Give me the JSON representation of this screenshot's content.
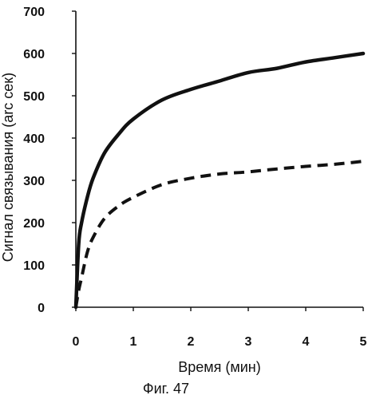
{
  "chart_data": {
    "type": "line",
    "caption": "Фиг. 47",
    "xlabel": "Время (мин)",
    "ylabel": "Сигнал связывания (arc сек)",
    "xlim": [
      0,
      5
    ],
    "ylim": [
      0,
      700
    ],
    "x_ticks": [
      0,
      1,
      2,
      3,
      4,
      5
    ],
    "y_ticks": [
      0,
      100,
      200,
      300,
      400,
      500,
      600,
      700
    ],
    "grid": false,
    "series": [
      {
        "style": "solid",
        "color": "#111111",
        "x": [
          0,
          0.05,
          0.1,
          0.2,
          0.3,
          0.5,
          0.75,
          1,
          1.5,
          2,
          2.5,
          3,
          3.5,
          4,
          4.5,
          5
        ],
        "y": [
          0,
          150,
          200,
          260,
          305,
          365,
          410,
          445,
          490,
          515,
          535,
          555,
          565,
          580,
          590,
          600
        ]
      },
      {
        "style": "dashed",
        "color": "#111111",
        "x": [
          0,
          0.05,
          0.1,
          0.2,
          0.3,
          0.5,
          0.75,
          1,
          1.5,
          2,
          2.5,
          3,
          3.5,
          4,
          4.5,
          5
        ],
        "y": [
          0,
          40,
          70,
          130,
          165,
          210,
          240,
          260,
          290,
          305,
          315,
          320,
          327,
          333,
          338,
          345
        ]
      }
    ]
  }
}
